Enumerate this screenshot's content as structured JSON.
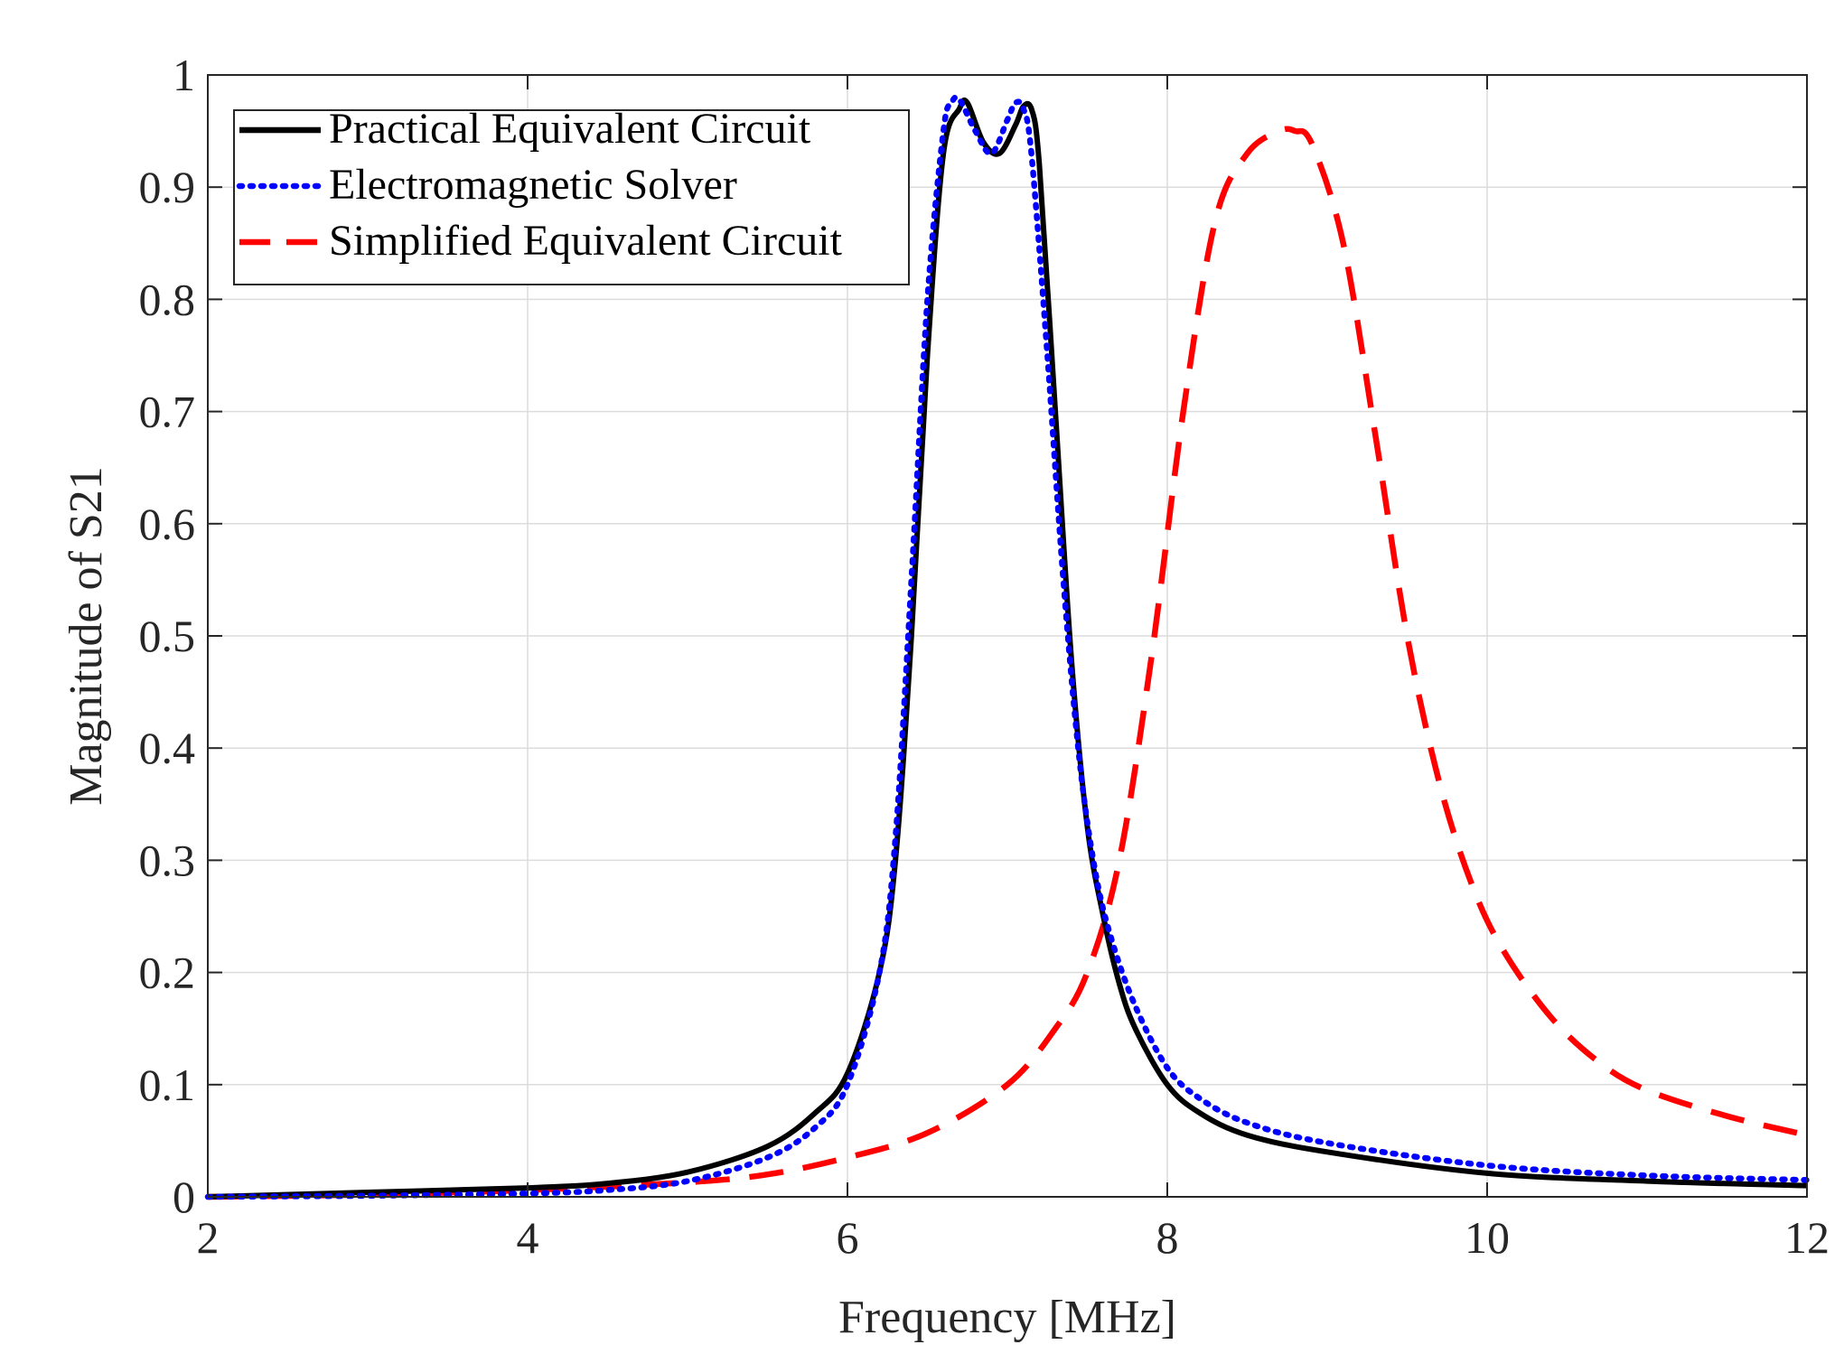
{
  "chart_data": {
    "type": "line",
    "title": "",
    "xlabel": "Frequency [MHz]",
    "ylabel": "Magnitude of S21",
    "xlim": [
      2,
      12
    ],
    "ylim": [
      0,
      1
    ],
    "grid": true,
    "legend_position": "top-left",
    "x_ticks": [
      2,
      4,
      6,
      8,
      10,
      12
    ],
    "x_tick_labels": [
      "2",
      "4",
      "6",
      "8",
      "10",
      "12"
    ],
    "y_ticks": [
      0,
      0.1,
      0.2,
      0.3,
      0.4,
      0.5,
      0.6,
      0.7,
      0.8,
      0.9,
      1
    ],
    "y_tick_labels": [
      "0",
      "0.1",
      "0.2",
      "0.3",
      "0.4",
      "0.5",
      "0.6",
      "0.7",
      "0.8",
      "0.9",
      "1"
    ],
    "series": [
      {
        "name": "Practical Equivalent Circuit",
        "color": "#000000",
        "style": "solid",
        "x": [
          2.0,
          3.0,
          4.0,
          4.5,
          5.0,
          5.5,
          5.8,
          6.0,
          6.2,
          6.3,
          6.4,
          6.5,
          6.6,
          6.7,
          6.75,
          6.85,
          6.95,
          7.05,
          7.1,
          7.15,
          7.2,
          7.3,
          7.4,
          7.5,
          7.6,
          7.7,
          7.8,
          8.0,
          8.2,
          8.5,
          9.0,
          10.0,
          11.0,
          12.0
        ],
        "values": [
          0.0,
          0.004,
          0.008,
          0.012,
          0.022,
          0.045,
          0.075,
          0.11,
          0.2,
          0.3,
          0.5,
          0.75,
          0.93,
          0.97,
          0.975,
          0.94,
          0.93,
          0.955,
          0.972,
          0.97,
          0.92,
          0.7,
          0.48,
          0.33,
          0.25,
          0.19,
          0.15,
          0.1,
          0.075,
          0.055,
          0.04,
          0.021,
          0.014,
          0.01
        ]
      },
      {
        "name": "Electromagnetic Solver",
        "color": "#0000ff",
        "style": "dotted",
        "x": [
          2.0,
          3.0,
          4.0,
          4.5,
          5.0,
          5.5,
          5.8,
          6.0,
          6.2,
          6.3,
          6.4,
          6.5,
          6.6,
          6.65,
          6.7,
          6.8,
          6.9,
          7.0,
          7.05,
          7.1,
          7.15,
          7.25,
          7.35,
          7.45,
          7.55,
          7.65,
          7.8,
          8.0,
          8.2,
          8.5,
          9.0,
          10.0,
          11.0,
          12.0
        ],
        "values": [
          0.0,
          0.001,
          0.003,
          0.006,
          0.014,
          0.035,
          0.062,
          0.1,
          0.2,
          0.32,
          0.55,
          0.8,
          0.95,
          0.975,
          0.978,
          0.95,
          0.93,
          0.96,
          0.975,
          0.97,
          0.93,
          0.75,
          0.55,
          0.39,
          0.29,
          0.23,
          0.17,
          0.115,
          0.088,
          0.066,
          0.048,
          0.028,
          0.019,
          0.015
        ]
      },
      {
        "name": "Simplified Equivalent Circuit",
        "color": "#ff0000",
        "style": "dashed",
        "x": [
          2.0,
          3.0,
          4.0,
          5.0,
          5.5,
          6.0,
          6.5,
          7.0,
          7.3,
          7.5,
          7.7,
          7.9,
          8.1,
          8.3,
          8.5,
          8.7,
          8.8,
          8.9,
          9.1,
          9.3,
          9.5,
          9.7,
          9.9,
          10.1,
          10.4,
          10.7,
          11.0,
          11.5,
          12.0
        ],
        "values": [
          0.0,
          0.002,
          0.006,
          0.013,
          0.02,
          0.035,
          0.057,
          0.1,
          0.15,
          0.2,
          0.3,
          0.48,
          0.7,
          0.87,
          0.93,
          0.95,
          0.95,
          0.94,
          0.85,
          0.68,
          0.5,
          0.37,
          0.28,
          0.22,
          0.16,
          0.12,
          0.095,
          0.072,
          0.055
        ]
      }
    ]
  }
}
